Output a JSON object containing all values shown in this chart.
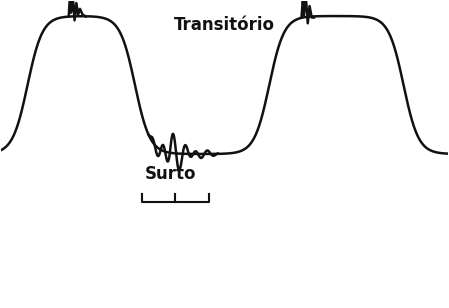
{
  "background_color": "#ffffff",
  "wave_color": "#111111",
  "text_color": "#111111",
  "label_transitorio": "Transitório",
  "label_surto": "Surto",
  "label_fontsize": 12,
  "label_fontweight": "bold",
  "figsize": [
    4.49,
    3.08
  ],
  "dpi": 100
}
